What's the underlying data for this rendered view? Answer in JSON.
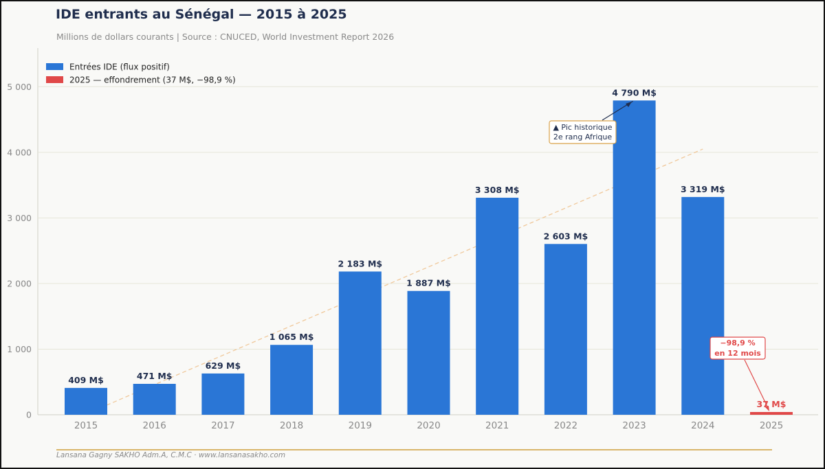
{
  "title": "IDE entrants au Sénégal — 2015 à 2025",
  "subtitle": "Millions de dollars courants  |  Source : CNUCED, World Investment Report 2026",
  "footer": "Lansana Gagny SAKHO  Adm.A, C.M.C  ·  www.lansanasakho.com",
  "colors": {
    "bar": "#2a76d6",
    "collapse": "#e04848",
    "label": "#1f2d4d",
    "trend": "#f0c89a",
    "grid": "#e6e6d8",
    "annotation_border": "#d9a24a"
  },
  "chart_data": {
    "type": "bar",
    "categories": [
      "2015",
      "2016",
      "2017",
      "2018",
      "2019",
      "2020",
      "2021",
      "2022",
      "2023",
      "2024",
      "2025"
    ],
    "values": [
      409,
      471,
      629,
      1065,
      2183,
      1887,
      3308,
      2603,
      4790,
      3319,
      37
    ],
    "value_labels": [
      "409 M$",
      "471 M$",
      "629 M$",
      "1 065 M$",
      "2 183 M$",
      "1 887 M$",
      "3 308 M$",
      "2 603 M$",
      "4 790 M$",
      "3 319 M$",
      "37 M$"
    ],
    "highlight_index": 10,
    "ylim": [
      0,
      5500
    ],
    "yticks": [
      0,
      1000,
      2000,
      3000,
      4000,
      5000
    ],
    "ytick_labels": [
      "0",
      "1 000",
      "2 000",
      "3 000",
      "4 000",
      "5 000"
    ],
    "grid": true,
    "legend_position": "top-left",
    "legend": [
      {
        "label": "Entrées IDE (flux positif)",
        "color": "#2a76d6"
      },
      {
        "label": "2025 — effondrement (37 M$, −98,9 %)",
        "color": "#e04848"
      }
    ],
    "trend_line": {
      "style": "dashed",
      "from": {
        "x": "2015",
        "y": 250
      },
      "to": {
        "x": "2024",
        "y": 4050
      }
    },
    "annotations": [
      {
        "text": [
          "▲ Pic historique",
          "2e rang Afrique"
        ],
        "target_index": 8
      },
      {
        "text": [
          "−98,9 %",
          "en 12 mois"
        ],
        "target_index": 10
      }
    ]
  }
}
